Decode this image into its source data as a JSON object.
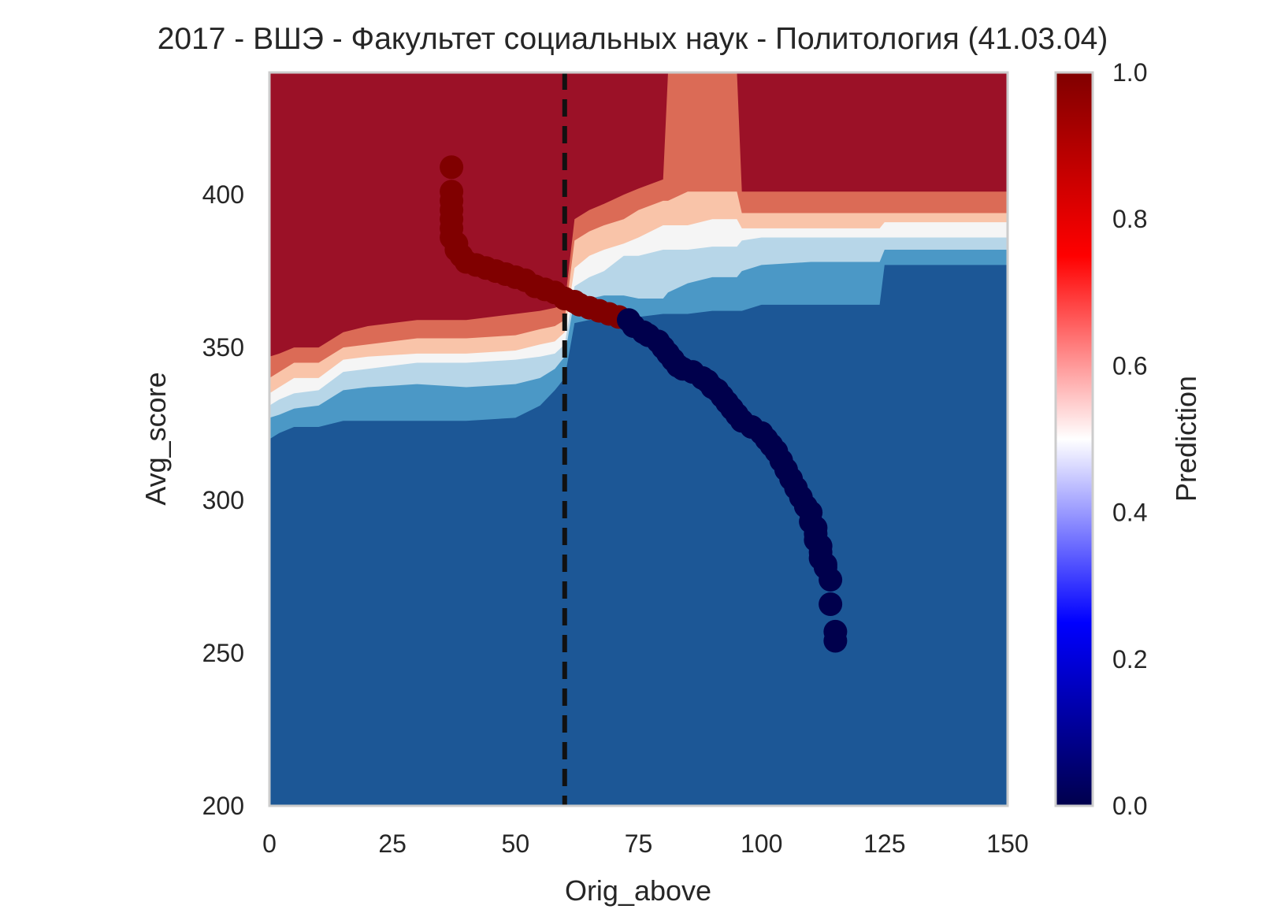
{
  "chart_data": {
    "type": "heatmap",
    "title": "2017 - ВШЭ - Факультет социальных наук - Политология (41.03.04)",
    "xlabel": "Orig_above",
    "ylabel": "Avg_score",
    "xlim": [
      0,
      150
    ],
    "ylim": [
      200,
      440
    ],
    "x_ticks": [
      "0",
      "25",
      "50",
      "75",
      "100",
      "125",
      "150"
    ],
    "y_ticks": [
      "200",
      "250",
      "300",
      "350",
      "400"
    ],
    "grid": false,
    "background_surface": {
      "description_levels": [
        0.1,
        0.3,
        0.45,
        0.55,
        0.7,
        0.9
      ],
      "level_colors": [
        "#1c5796",
        "#4b98c6",
        "#b7d6e8",
        "#f5f5f5",
        "#f9c4a9",
        "#db6b56",
        "#9b1127"
      ],
      "boundaries_x": [
        0,
        2,
        5,
        10,
        15,
        20,
        30,
        40,
        50,
        55,
        58,
        60,
        62,
        65,
        68,
        72,
        75,
        80,
        81,
        85,
        90,
        95,
        96,
        100,
        110,
        124,
        125,
        150
      ],
      "red_top": [
        347,
        348,
        350,
        350,
        355,
        357,
        359,
        359,
        361,
        362,
        363,
        364,
        392,
        395,
        397,
        400,
        402,
        405,
        440,
        440,
        440,
        440,
        401,
        401,
        401,
        401,
        401,
        401
      ],
      "salmon_top": [
        340,
        342,
        345,
        345,
        350,
        351,
        353,
        353,
        354,
        356,
        357,
        359,
        385,
        388,
        390,
        392,
        395,
        398,
        398,
        401,
        401,
        401,
        394,
        394,
        394,
        394,
        394,
        394
      ],
      "pink_top": [
        335,
        337,
        340,
        340,
        346,
        347,
        348,
        348,
        349,
        351,
        352,
        355,
        376,
        380,
        382,
        384,
        386,
        390,
        390,
        390,
        392,
        392,
        389,
        389,
        389,
        389,
        391,
        391
      ],
      "white_top": [
        331,
        333,
        335,
        336,
        342,
        343,
        345,
        345,
        346,
        347,
        348,
        351,
        370,
        373,
        375,
        380,
        380,
        382,
        382,
        382,
        383,
        383,
        385,
        386,
        386,
        386,
        386,
        386
      ],
      "light_top": [
        327,
        328,
        330,
        331,
        336,
        337,
        338,
        337,
        338,
        340,
        343,
        347,
        366,
        366,
        367,
        367,
        366,
        366,
        368,
        371,
        373,
        373,
        375,
        377,
        378,
        378,
        382,
        382
      ],
      "mid_top": [
        320,
        322,
        324,
        324,
        326,
        326,
        326,
        326,
        327,
        331,
        336,
        340,
        358,
        359,
        360,
        360,
        360,
        361,
        361,
        361,
        362,
        362,
        362,
        364,
        364,
        364,
        377,
        377
      ]
    },
    "vline": {
      "x": 60,
      "style": "dashed",
      "color": "#111111"
    },
    "series": [
      {
        "color_by": "Prediction",
        "x": [
          37,
          37,
          37,
          37,
          37,
          37,
          37,
          38,
          38,
          39,
          40,
          42,
          44,
          46,
          48,
          50,
          52,
          54,
          56,
          58,
          60,
          62,
          63,
          65,
          67,
          69,
          71,
          73,
          74,
          76,
          77,
          79,
          80,
          81,
          82,
          83,
          84,
          86,
          88,
          89,
          90,
          91,
          92,
          93,
          94,
          95,
          96,
          98,
          100,
          101,
          102,
          103,
          104,
          105,
          106,
          107,
          108,
          109,
          110,
          110,
          111,
          111,
          111,
          112,
          112,
          112,
          113,
          113,
          114,
          114,
          115,
          115
        ],
        "y": [
          409,
          401,
          398,
          395,
          392,
          389,
          386,
          384,
          382,
          380,
          378,
          377,
          376,
          375,
          374,
          373,
          372,
          370,
          369,
          368,
          366,
          365,
          364,
          363,
          362,
          361,
          360,
          359,
          357,
          355,
          354,
          352,
          350,
          348,
          346,
          344,
          343,
          342,
          340,
          339,
          337,
          336,
          334,
          332,
          330,
          328,
          326,
          324,
          322,
          320,
          318,
          316,
          313,
          310,
          307,
          304,
          301,
          298,
          296,
          293,
          291,
          289,
          287,
          285,
          283,
          281,
          279,
          278,
          274,
          266,
          257,
          254
        ],
        "prediction": [
          1,
          1,
          1,
          1,
          1,
          1,
          1,
          1,
          1,
          1,
          1,
          1,
          1,
          1,
          1,
          1,
          1,
          1,
          1,
          1,
          1,
          1,
          1,
          1,
          1,
          1,
          1,
          0,
          0,
          0,
          0,
          0,
          0,
          0,
          0,
          0,
          0,
          0,
          0,
          0,
          0,
          0,
          0,
          0,
          0,
          0,
          0,
          0,
          0,
          0,
          0,
          0,
          0,
          0,
          0,
          0,
          0,
          0,
          0,
          0,
          0,
          0,
          0,
          0,
          0,
          0,
          0,
          0,
          0,
          0,
          0,
          0
        ]
      }
    ],
    "colorbar": {
      "label": "Prediction",
      "range": [
        0,
        1
      ],
      "ticks": [
        "0.0",
        "0.2",
        "0.4",
        "0.6",
        "0.8",
        "1.0"
      ],
      "colormap": "seismic"
    }
  }
}
